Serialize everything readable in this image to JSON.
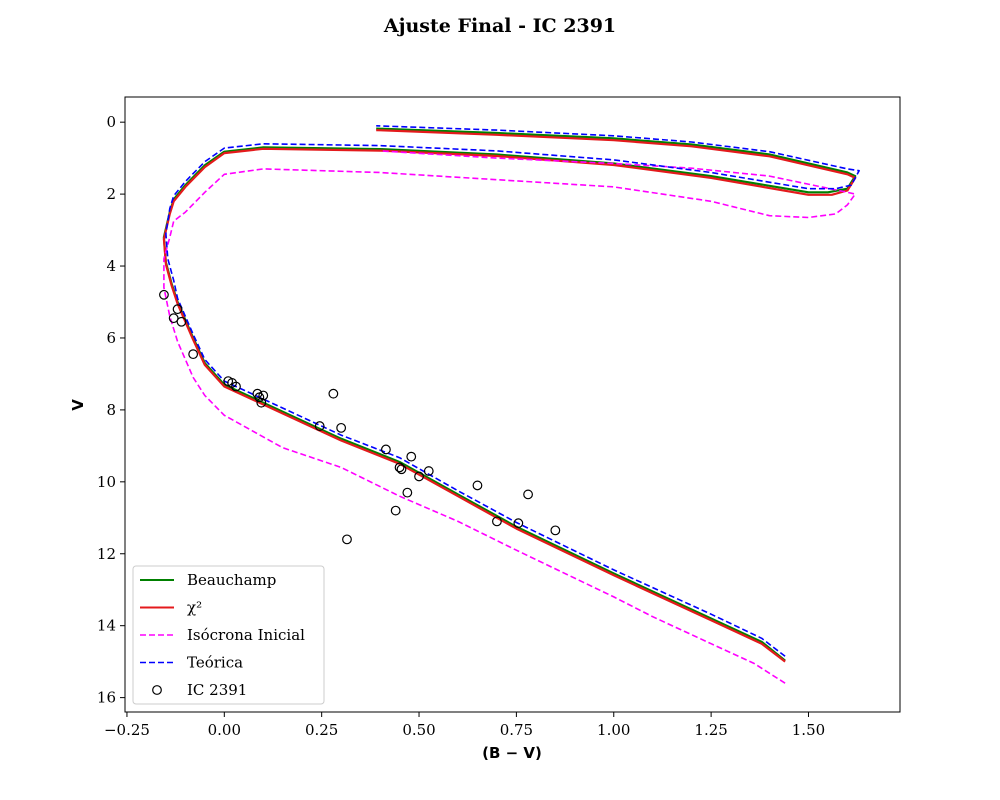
{
  "chart_data": {
    "type": "line",
    "title": "Ajuste Final - IC 2391",
    "xlabel": "(B − V)",
    "ylabel": "V",
    "xlim": [
      -0.255,
      1.735
    ],
    "ylim": [
      16.4,
      -0.7
    ],
    "y_inverted": true,
    "grid": false,
    "legend_position": "lower-left",
    "x_ticks": [
      -0.25,
      0.0,
      0.25,
      0.5,
      0.75,
      1.0,
      1.25,
      1.5
    ],
    "x_tick_labels": [
      "−0.25",
      "0.00",
      "0.25",
      "0.50",
      "0.75",
      "1.00",
      "1.25",
      "1.50"
    ],
    "y_ticks": [
      0,
      2,
      4,
      6,
      8,
      10,
      12,
      14,
      16
    ],
    "y_tick_labels": [
      "0",
      "2",
      "4",
      "6",
      "8",
      "10",
      "12",
      "14",
      "16"
    ],
    "series": [
      {
        "name": "Beauchamp",
        "kind": "line",
        "color": "#008000",
        "dash": "solid",
        "points": [
          [
            1.44,
            14.97
          ],
          [
            1.38,
            14.45
          ],
          [
            1.25,
            13.8
          ],
          [
            1.0,
            12.55
          ],
          [
            0.75,
            11.25
          ],
          [
            0.6,
            10.35
          ],
          [
            0.45,
            9.45
          ],
          [
            0.3,
            8.8
          ],
          [
            0.1,
            7.8
          ],
          [
            0.0,
            7.3
          ],
          [
            -0.05,
            6.7
          ],
          [
            -0.08,
            6.0
          ],
          [
            -0.1,
            5.5
          ],
          [
            -0.12,
            5.0
          ],
          [
            -0.135,
            4.5
          ],
          [
            -0.15,
            3.9
          ],
          [
            -0.155,
            3.2
          ],
          [
            -0.14,
            2.5
          ],
          [
            -0.13,
            2.15
          ],
          [
            -0.1,
            1.75
          ],
          [
            -0.05,
            1.2
          ],
          [
            0.0,
            0.82
          ],
          [
            0.1,
            0.7
          ],
          [
            0.4,
            0.75
          ],
          [
            0.7,
            0.9
          ],
          [
            1.0,
            1.15
          ],
          [
            1.25,
            1.5
          ],
          [
            1.5,
            1.95
          ],
          [
            1.55,
            1.95
          ],
          [
            1.6,
            1.85
          ],
          [
            1.62,
            1.5
          ],
          [
            1.6,
            1.4
          ],
          [
            1.4,
            0.9
          ],
          [
            1.2,
            0.62
          ],
          [
            1.0,
            0.45
          ],
          [
            0.7,
            0.3
          ],
          [
            0.39,
            0.18
          ]
        ]
      },
      {
        "name": "χ²",
        "kind": "line",
        "color": "#e41a1c",
        "dash": "solid",
        "points": [
          [
            1.44,
            15.0
          ],
          [
            1.38,
            14.5
          ],
          [
            1.25,
            13.85
          ],
          [
            1.0,
            12.6
          ],
          [
            0.75,
            11.3
          ],
          [
            0.6,
            10.4
          ],
          [
            0.45,
            9.5
          ],
          [
            0.3,
            8.85
          ],
          [
            0.1,
            7.85
          ],
          [
            0.0,
            7.35
          ],
          [
            -0.05,
            6.75
          ],
          [
            -0.08,
            6.05
          ],
          [
            -0.1,
            5.55
          ],
          [
            -0.12,
            5.05
          ],
          [
            -0.135,
            4.55
          ],
          [
            -0.15,
            3.95
          ],
          [
            -0.155,
            3.25
          ],
          [
            -0.14,
            2.55
          ],
          [
            -0.13,
            2.2
          ],
          [
            -0.1,
            1.8
          ],
          [
            -0.05,
            1.25
          ],
          [
            0.0,
            0.86
          ],
          [
            0.1,
            0.74
          ],
          [
            0.4,
            0.79
          ],
          [
            0.7,
            0.94
          ],
          [
            1.0,
            1.19
          ],
          [
            1.25,
            1.55
          ],
          [
            1.5,
            2.02
          ],
          [
            1.56,
            2.02
          ],
          [
            1.6,
            1.9
          ],
          [
            1.62,
            1.55
          ],
          [
            1.6,
            1.45
          ],
          [
            1.4,
            0.95
          ],
          [
            1.2,
            0.67
          ],
          [
            1.0,
            0.5
          ],
          [
            0.7,
            0.35
          ],
          [
            0.39,
            0.22
          ]
        ]
      },
      {
        "name": "Isócrona Inicial",
        "kind": "line",
        "color": "#ff00ff",
        "dash": "dashed",
        "points": [
          [
            1.44,
            15.6
          ],
          [
            1.36,
            15.05
          ],
          [
            1.25,
            14.5
          ],
          [
            1.1,
            13.75
          ],
          [
            1.0,
            13.2
          ],
          [
            0.75,
            11.9
          ],
          [
            0.6,
            11.1
          ],
          [
            0.45,
            10.4
          ],
          [
            0.3,
            9.6
          ],
          [
            0.15,
            9.05
          ],
          [
            0.0,
            8.15
          ],
          [
            -0.05,
            7.6
          ],
          [
            -0.08,
            7.1
          ],
          [
            -0.1,
            6.6
          ],
          [
            -0.12,
            6.1
          ],
          [
            -0.14,
            5.4
          ],
          [
            -0.155,
            4.6
          ],
          [
            -0.155,
            3.8
          ],
          [
            -0.14,
            3.2
          ],
          [
            -0.13,
            2.75
          ],
          [
            -0.1,
            2.5
          ],
          [
            -0.05,
            1.95
          ],
          [
            0.0,
            1.45
          ],
          [
            0.1,
            1.3
          ],
          [
            0.4,
            1.4
          ],
          [
            0.7,
            1.6
          ],
          [
            1.0,
            1.8
          ],
          [
            1.25,
            2.2
          ],
          [
            1.4,
            2.6
          ],
          [
            1.5,
            2.65
          ],
          [
            1.57,
            2.55
          ],
          [
            1.6,
            2.3
          ],
          [
            1.62,
            2.0
          ],
          [
            1.6,
            1.95
          ],
          [
            1.4,
            1.5
          ],
          [
            1.2,
            1.28
          ],
          [
            1.0,
            1.15
          ],
          [
            0.7,
            1.0
          ],
          [
            0.4,
            0.8
          ]
        ]
      },
      {
        "name": "Teórica",
        "kind": "line",
        "color": "#0000ff",
        "dash": "dashed",
        "points": [
          [
            1.44,
            14.85
          ],
          [
            1.38,
            14.35
          ],
          [
            1.25,
            13.68
          ],
          [
            1.0,
            12.45
          ],
          [
            0.75,
            11.13
          ],
          [
            0.6,
            10.25
          ],
          [
            0.45,
            9.33
          ],
          [
            0.3,
            8.7
          ],
          [
            0.1,
            7.7
          ],
          [
            0.0,
            7.2
          ],
          [
            -0.05,
            6.6
          ],
          [
            -0.08,
            5.9
          ],
          [
            -0.1,
            5.4
          ],
          [
            -0.12,
            4.9
          ],
          [
            -0.13,
            4.4
          ],
          [
            -0.145,
            3.8
          ],
          [
            -0.15,
            3.1
          ],
          [
            -0.14,
            2.4
          ],
          [
            -0.13,
            2.05
          ],
          [
            -0.1,
            1.65
          ],
          [
            -0.05,
            1.1
          ],
          [
            0.0,
            0.72
          ],
          [
            0.1,
            0.6
          ],
          [
            0.4,
            0.65
          ],
          [
            0.7,
            0.8
          ],
          [
            1.0,
            1.05
          ],
          [
            1.25,
            1.4
          ],
          [
            1.5,
            1.85
          ],
          [
            1.57,
            1.85
          ],
          [
            1.61,
            1.75
          ],
          [
            1.63,
            1.35
          ],
          [
            1.6,
            1.3
          ],
          [
            1.4,
            0.82
          ],
          [
            1.2,
            0.55
          ],
          [
            1.0,
            0.38
          ],
          [
            0.7,
            0.22
          ],
          [
            0.39,
            0.1
          ]
        ]
      },
      {
        "name": "IC 2391",
        "kind": "scatter",
        "color": "#000000",
        "marker": "open-circle",
        "points": [
          [
            -0.155,
            4.8
          ],
          [
            -0.12,
            5.2
          ],
          [
            -0.13,
            5.45
          ],
          [
            -0.11,
            5.55
          ],
          [
            -0.08,
            6.45
          ],
          [
            0.01,
            7.2
          ],
          [
            0.02,
            7.25
          ],
          [
            0.03,
            7.35
          ],
          [
            0.085,
            7.55
          ],
          [
            0.09,
            7.65
          ],
          [
            0.1,
            7.6
          ],
          [
            0.095,
            7.8
          ],
          [
            0.28,
            7.55
          ],
          [
            0.245,
            8.45
          ],
          [
            0.3,
            8.5
          ],
          [
            0.415,
            9.1
          ],
          [
            0.45,
            9.6
          ],
          [
            0.455,
            9.65
          ],
          [
            0.48,
            9.3
          ],
          [
            0.525,
            9.7
          ],
          [
            0.5,
            9.85
          ],
          [
            0.47,
            10.3
          ],
          [
            0.65,
            10.1
          ],
          [
            0.78,
            10.35
          ],
          [
            0.44,
            10.8
          ],
          [
            0.315,
            11.6
          ],
          [
            0.7,
            11.1
          ],
          [
            0.755,
            11.15
          ],
          [
            0.85,
            11.35
          ]
        ]
      }
    ]
  }
}
